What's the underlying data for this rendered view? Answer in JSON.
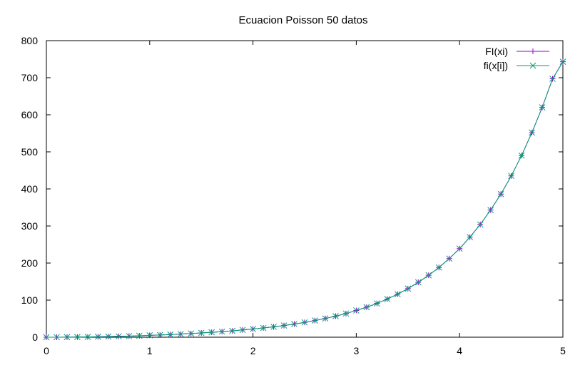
{
  "chart_data": {
    "type": "line",
    "title": "Ecuacion Poisson 50 datos",
    "xlabel": "",
    "ylabel": "",
    "xlim": [
      0,
      5
    ],
    "ylim": [
      0,
      800
    ],
    "xticks": [
      "0",
      "1",
      "2",
      "3",
      "4",
      "5"
    ],
    "yticks": [
      "0",
      "100",
      "200",
      "300",
      "400",
      "500",
      "600",
      "700",
      "800"
    ],
    "grid": false,
    "legend_position": "top-right",
    "x": [
      0,
      0.1,
      0.2,
      0.3,
      0.4,
      0.5,
      0.6,
      0.7,
      0.8,
      0.9,
      1.0,
      1.1,
      1.2,
      1.3,
      1.4,
      1.5,
      1.6,
      1.7,
      1.8,
      1.9,
      2.0,
      2.1,
      2.2,
      2.3,
      2.4,
      2.5,
      2.6,
      2.7,
      2.8,
      2.9,
      3.0,
      3.1,
      3.2,
      3.3,
      3.4,
      3.5,
      3.6,
      3.7,
      3.8,
      3.9,
      4.0,
      4.1,
      4.2,
      4.3,
      4.4,
      4.5,
      4.6,
      4.7,
      4.8,
      4.9,
      5.0
    ],
    "series": [
      {
        "name": "FI(xi)",
        "color": "#9400d3",
        "marker": "plus",
        "values": [
          0,
          0.1,
          0.3,
          0.5,
          0.8,
          1.2,
          1.7,
          2.3,
          3.0,
          3.9,
          5.0,
          6.0,
          7.2,
          8.5,
          9.9,
          11.5,
          13.2,
          15.0,
          17.0,
          19.6,
          22.0,
          24.9,
          28.0,
          31.5,
          35.5,
          40.0,
          45.0,
          50.6,
          56.8,
          63.8,
          72.0,
          81.0,
          91.0,
          103.0,
          116.0,
          131.0,
          148.0,
          167.0,
          188.0,
          212.0,
          239.0,
          270.0,
          304.0,
          343.0,
          386.0,
          435.0,
          490.0,
          552.0,
          620.0,
          697.0,
          743.0
        ]
      },
      {
        "name": "fi(x[i])",
        "color": "#009e73",
        "marker": "cross",
        "values": [
          0,
          0.1,
          0.3,
          0.5,
          0.8,
          1.2,
          1.7,
          2.3,
          3.0,
          3.9,
          5.0,
          6.0,
          7.2,
          8.5,
          9.9,
          11.5,
          13.2,
          15.0,
          17.0,
          19.6,
          22.0,
          24.9,
          28.0,
          31.5,
          35.5,
          40.0,
          45.0,
          50.6,
          56.8,
          63.8,
          72.0,
          81.0,
          91.0,
          103.0,
          116.0,
          131.0,
          148.0,
          167.0,
          188.0,
          212.0,
          239.0,
          270.0,
          304.0,
          343.0,
          386.0,
          435.0,
          490.0,
          552.0,
          620.0,
          697.0,
          743.0
        ]
      }
    ]
  }
}
